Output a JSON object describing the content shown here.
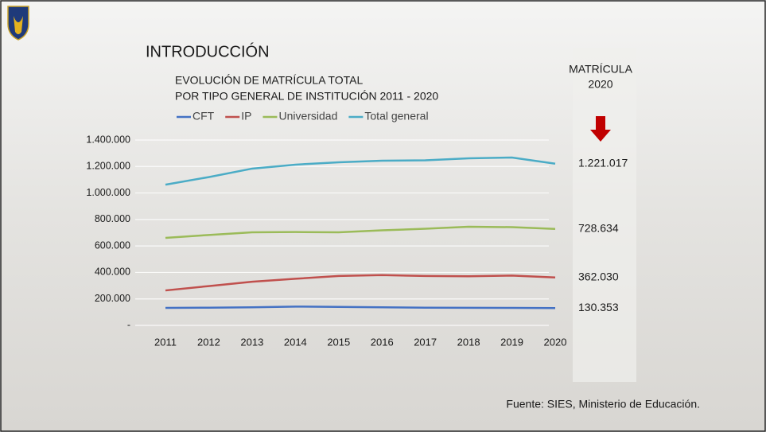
{
  "heading": "INTRODUCCIÓN",
  "side_label": [
    "MATRÍCULA",
    "2020"
  ],
  "source": "Fuente: SIES, Ministerio de Educación.",
  "chart_data": {
    "type": "line",
    "title": [
      "EVOLUCIÓN DE MATRÍCULA TOTAL",
      "POR TIPO GENERAL DE INSTITUCIÓN  2011 - 2020"
    ],
    "categories": [
      "2011",
      "2012",
      "2013",
      "2014",
      "2015",
      "2016",
      "2017",
      "2018",
      "2019",
      "2020"
    ],
    "series": [
      {
        "name": "CFT",
        "color": "#4472c4",
        "values": [
          132000,
          134000,
          137000,
          142000,
          140000,
          137000,
          134000,
          133000,
          132000,
          130353
        ],
        "value_labels": [
          null,
          null,
          null,
          null,
          null,
          null,
          null,
          null,
          null,
          "130.353"
        ]
      },
      {
        "name": "IP",
        "color": "#c0504d",
        "values": [
          264000,
          297000,
          330000,
          352000,
          373000,
          380000,
          373000,
          371000,
          376000,
          362030
        ],
        "value_labels": [
          null,
          null,
          null,
          null,
          null,
          null,
          null,
          null,
          null,
          "362.030"
        ]
      },
      {
        "name": "Universidad",
        "color": "#9bbb59",
        "values": [
          661000,
          683000,
          703000,
          705000,
          703000,
          718000,
          730000,
          745000,
          742000,
          728634
        ],
        "value_labels": [
          null,
          null,
          null,
          null,
          null,
          null,
          null,
          null,
          null,
          "728.634"
        ]
      },
      {
        "name": "Total general",
        "color": "#4bacc6",
        "values": [
          1063000,
          1120000,
          1184000,
          1214000,
          1232000,
          1244000,
          1247000,
          1262000,
          1268000,
          1221017
        ],
        "value_labels": [
          null,
          null,
          null,
          null,
          null,
          null,
          null,
          null,
          null,
          "1.221.017"
        ]
      }
    ],
    "ylim": [
      0,
      1400000
    ],
    "yticks": [
      {
        "value": 0,
        "label": "-"
      },
      {
        "value": 200000,
        "label": "200.000"
      },
      {
        "value": 400000,
        "label": "400.000"
      },
      {
        "value": 600000,
        "label": "600.000"
      },
      {
        "value": 800000,
        "label": "800.000"
      },
      {
        "value": 1000000,
        "label": "1.000.000"
      },
      {
        "value": 1200000,
        "label": "1.200.000"
      },
      {
        "value": 1400000,
        "label": "1.400.000"
      }
    ],
    "grid": true,
    "legend": "top"
  }
}
